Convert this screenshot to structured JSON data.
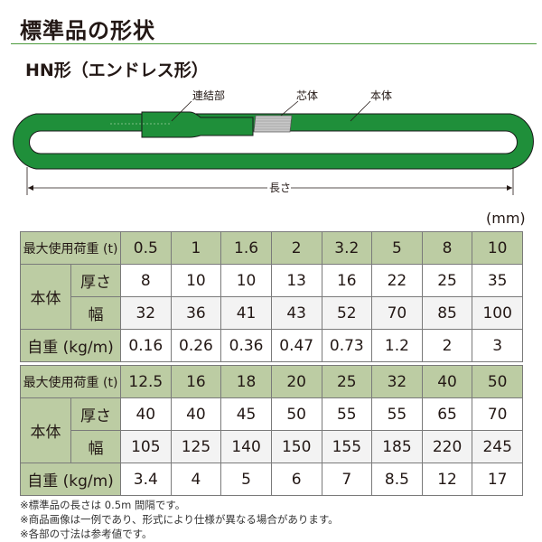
{
  "title": "標準品の形状",
  "subtitle": "HN形（エンドレス形）",
  "diagram": {
    "labels": {
      "joint": "連結部",
      "core": "芯体",
      "body": "本体",
      "length": "長さ"
    },
    "colors": {
      "sling": "#1f8f3a",
      "core": "#c8c8c8"
    }
  },
  "unit": "(mm)",
  "labels": {
    "load": "最大使用荷重 (t)",
    "body": "本体",
    "thickness": "厚さ",
    "width": "幅",
    "weight": "自重 (kg/m)"
  },
  "tables": [
    {
      "load": [
        "0.5",
        "1",
        "1.6",
        "2",
        "3.2",
        "5",
        "8",
        "10"
      ],
      "thickness": [
        "8",
        "10",
        "10",
        "13",
        "16",
        "22",
        "25",
        "35"
      ],
      "width": [
        "32",
        "36",
        "41",
        "43",
        "52",
        "70",
        "85",
        "100"
      ],
      "weight": [
        "0.16",
        "0.26",
        "0.36",
        "0.47",
        "0.73",
        "1.2",
        "2",
        "3"
      ]
    },
    {
      "load": [
        "12.5",
        "16",
        "18",
        "20",
        "25",
        "32",
        "40",
        "50"
      ],
      "thickness": [
        "40",
        "40",
        "45",
        "50",
        "55",
        "55",
        "65",
        "70"
      ],
      "width": [
        "105",
        "125",
        "140",
        "150",
        "155",
        "185",
        "220",
        "245"
      ],
      "weight": [
        "3.4",
        "4",
        "5",
        "6",
        "7",
        "8.5",
        "12",
        "17"
      ]
    }
  ],
  "notes": [
    "※標準品の長さは 0.5m 間隔です。",
    "※商品画像は一例であり、形式により仕様が異なる場合があります。",
    "※各部の寸法は参考値です。"
  ]
}
